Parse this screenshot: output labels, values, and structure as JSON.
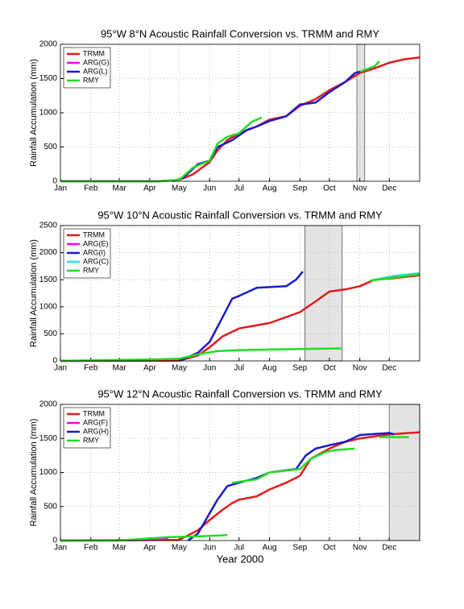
{
  "chart_data": [
    {
      "type": "line",
      "title": "95°W 8°N Acoustic Rainfall Conversion vs. TRMM and RMY",
      "ylabel": "Rainfall Accumulation (mm)",
      "xlim": [
        0,
        366
      ],
      "xticks": [
        {
          "value": 0,
          "label": "Jan"
        },
        {
          "value": 31,
          "label": "Feb"
        },
        {
          "value": 60,
          "label": "Mar"
        },
        {
          "value": 91,
          "label": "Apr"
        },
        {
          "value": 121,
          "label": "May"
        },
        {
          "value": 152,
          "label": "Jun"
        },
        {
          "value": 182,
          "label": "Jul"
        },
        {
          "value": 213,
          "label": "Aug"
        },
        {
          "value": 244,
          "label": "Sep"
        },
        {
          "value": 274,
          "label": "Oct"
        },
        {
          "value": 305,
          "label": "Nov"
        },
        {
          "value": 335,
          "label": "Dec"
        }
      ],
      "ylim": [
        0,
        2000
      ],
      "yticks": [
        0,
        500,
        1000,
        1500,
        2000
      ],
      "grid": true,
      "legend": "upper left",
      "shaded": [
        302,
        310
      ],
      "series": [
        {
          "name": "TRMM",
          "color": "#e41a1c",
          "x": [
            0,
            100,
            121,
            135,
            152,
            160,
            170,
            182,
            200,
            213,
            230,
            244,
            260,
            274,
            290,
            305,
            320,
            335,
            350,
            366
          ],
          "values": [
            0,
            0,
            20,
            100,
            280,
            450,
            600,
            700,
            800,
            900,
            950,
            1100,
            1200,
            1330,
            1450,
            1580,
            1650,
            1730,
            1780,
            1810
          ]
        },
        {
          "name": "ARG(G)",
          "color": "#ff00ff",
          "x": [
            0,
            100
          ],
          "values": [
            0,
            0
          ]
        },
        {
          "name": "ARG(L)",
          "color": "#1a1acc",
          "x": [
            115,
            125,
            140,
            152,
            160,
            175,
            190,
            200,
            213,
            230,
            244,
            260,
            274,
            290,
            300,
            305
          ],
          "values": [
            0,
            50,
            250,
            300,
            500,
            600,
            750,
            800,
            880,
            950,
            1120,
            1150,
            1300,
            1450,
            1580,
            1600
          ]
        },
        {
          "name": "RMY",
          "color": "#22dd22",
          "x": [
            0,
            100,
            121,
            135,
            152,
            160,
            170,
            182,
            195,
            205,
            null,
            305,
            320,
            325
          ],
          "values": [
            0,
            0,
            20,
            200,
            300,
            550,
            650,
            700,
            870,
            930,
            null,
            1600,
            1680,
            1750
          ]
        }
      ]
    },
    {
      "type": "line",
      "title": "95°W 10°N Acoustic Rainfall Conversion vs. TRMM and RMY",
      "ylabel": "Rainfall Accumulation (mm)",
      "xlim": [
        0,
        366
      ],
      "xticks": [
        {
          "value": 0,
          "label": "Jan"
        },
        {
          "value": 31,
          "label": "Feb"
        },
        {
          "value": 60,
          "label": "Mar"
        },
        {
          "value": 91,
          "label": "Apr"
        },
        {
          "value": 121,
          "label": "May"
        },
        {
          "value": 152,
          "label": "Jun"
        },
        {
          "value": 182,
          "label": "Jul"
        },
        {
          "value": 213,
          "label": "Aug"
        },
        {
          "value": 244,
          "label": "Sep"
        },
        {
          "value": 274,
          "label": "Oct"
        },
        {
          "value": 305,
          "label": "Nov"
        },
        {
          "value": 335,
          "label": "Dec"
        }
      ],
      "ylim": [
        0,
        2500
      ],
      "yticks": [
        0,
        500,
        1000,
        1500,
        2000,
        2500
      ],
      "grid": true,
      "legend": "upper left",
      "shaded": [
        249,
        287
      ],
      "series": [
        {
          "name": "TRMM",
          "color": "#e41a1c",
          "x": [
            0,
            121,
            140,
            152,
            165,
            182,
            213,
            244,
            260,
            274,
            290,
            305,
            320,
            335,
            366
          ],
          "values": [
            0,
            5,
            100,
            250,
            450,
            600,
            700,
            900,
            1100,
            1280,
            1320,
            1380,
            1500,
            1520,
            1580
          ]
        },
        {
          "name": "ARG(E)",
          "color": "#ff00ff",
          "x": [
            0,
            20
          ],
          "values": [
            0,
            0
          ]
        },
        {
          "name": "ARG(I)",
          "color": "#1a1acc",
          "x": [
            121,
            140,
            152,
            165,
            175,
            182,
            200,
            230,
            240,
            247
          ],
          "values": [
            0,
            150,
            350,
            800,
            1150,
            1200,
            1350,
            1380,
            1500,
            1650
          ]
        },
        {
          "name": "ARG(C)",
          "color": "#22e5e5",
          "x": [
            320,
            340,
            366
          ],
          "values": [
            1500,
            1570,
            1620
          ]
        },
        {
          "name": "RMY",
          "color": "#22dd22",
          "x": [
            0,
            60,
            100,
            121,
            140,
            160,
            182,
            213,
            244,
            286,
            null,
            315,
            340,
            366
          ],
          "values": [
            0,
            20,
            30,
            40,
            120,
            180,
            200,
            210,
            220,
            230,
            null,
            1480,
            1540,
            1600
          ]
        }
      ]
    },
    {
      "type": "line",
      "title": "95°W 12°N Acoustic Rainfall Conversion vs. TRMM and RMY",
      "ylabel": "Rainfall Accumulation (mm)",
      "xlabel": "Year 2000",
      "xlim": [
        0,
        366
      ],
      "xticks": [
        {
          "value": 0,
          "label": "Jan"
        },
        {
          "value": 31,
          "label": "Feb"
        },
        {
          "value": 60,
          "label": "Mar"
        },
        {
          "value": 91,
          "label": "Apr"
        },
        {
          "value": 121,
          "label": "May"
        },
        {
          "value": 152,
          "label": "Jun"
        },
        {
          "value": 182,
          "label": "Jul"
        },
        {
          "value": 213,
          "label": "Aug"
        },
        {
          "value": 244,
          "label": "Sep"
        },
        {
          "value": 274,
          "label": "Oct"
        },
        {
          "value": 305,
          "label": "Nov"
        },
        {
          "value": 335,
          "label": "Dec"
        }
      ],
      "ylim": [
        0,
        2000
      ],
      "yticks": [
        0,
        500,
        1000,
        1500,
        2000
      ],
      "grid": true,
      "legend": "upper left",
      "shaded": [
        335,
        366
      ],
      "series": [
        {
          "name": "TRMM",
          "color": "#e41a1c",
          "x": [
            0,
            121,
            140,
            152,
            165,
            175,
            182,
            200,
            213,
            230,
            244,
            255,
            274,
            290,
            305,
            335,
            366
          ],
          "values": [
            0,
            10,
            150,
            300,
            450,
            550,
            600,
            650,
            750,
            850,
            950,
            1200,
            1350,
            1450,
            1500,
            1560,
            1590
          ]
        },
        {
          "name": "ARG(F)",
          "color": "#ff00ff",
          "x": [
            70,
            100,
            110
          ],
          "values": [
            0,
            20,
            30
          ]
        },
        {
          "name": "ARG(H)",
          "color": "#1a1acc",
          "x": [
            130,
            140,
            152,
            160,
            170,
            182,
            200,
            213,
            240,
            250,
            260,
            274,
            290,
            305,
            335,
            340
          ],
          "values": [
            0,
            100,
            400,
            600,
            800,
            850,
            920,
            1000,
            1050,
            1250,
            1350,
            1400,
            1450,
            1550,
            1580,
            1560
          ]
        },
        {
          "name": "RMY",
          "color": "#22dd22",
          "x": [
            0,
            60,
            110,
            140,
            170,
            null,
            175,
            200,
            213,
            244,
            255,
            270,
            280,
            290,
            300,
            null,
            325,
            355
          ],
          "values": [
            0,
            0,
            50,
            60,
            80,
            null,
            850,
            900,
            1000,
            1050,
            1200,
            1300,
            1330,
            1340,
            1350,
            null,
            1520,
            1520
          ]
        }
      ]
    }
  ]
}
